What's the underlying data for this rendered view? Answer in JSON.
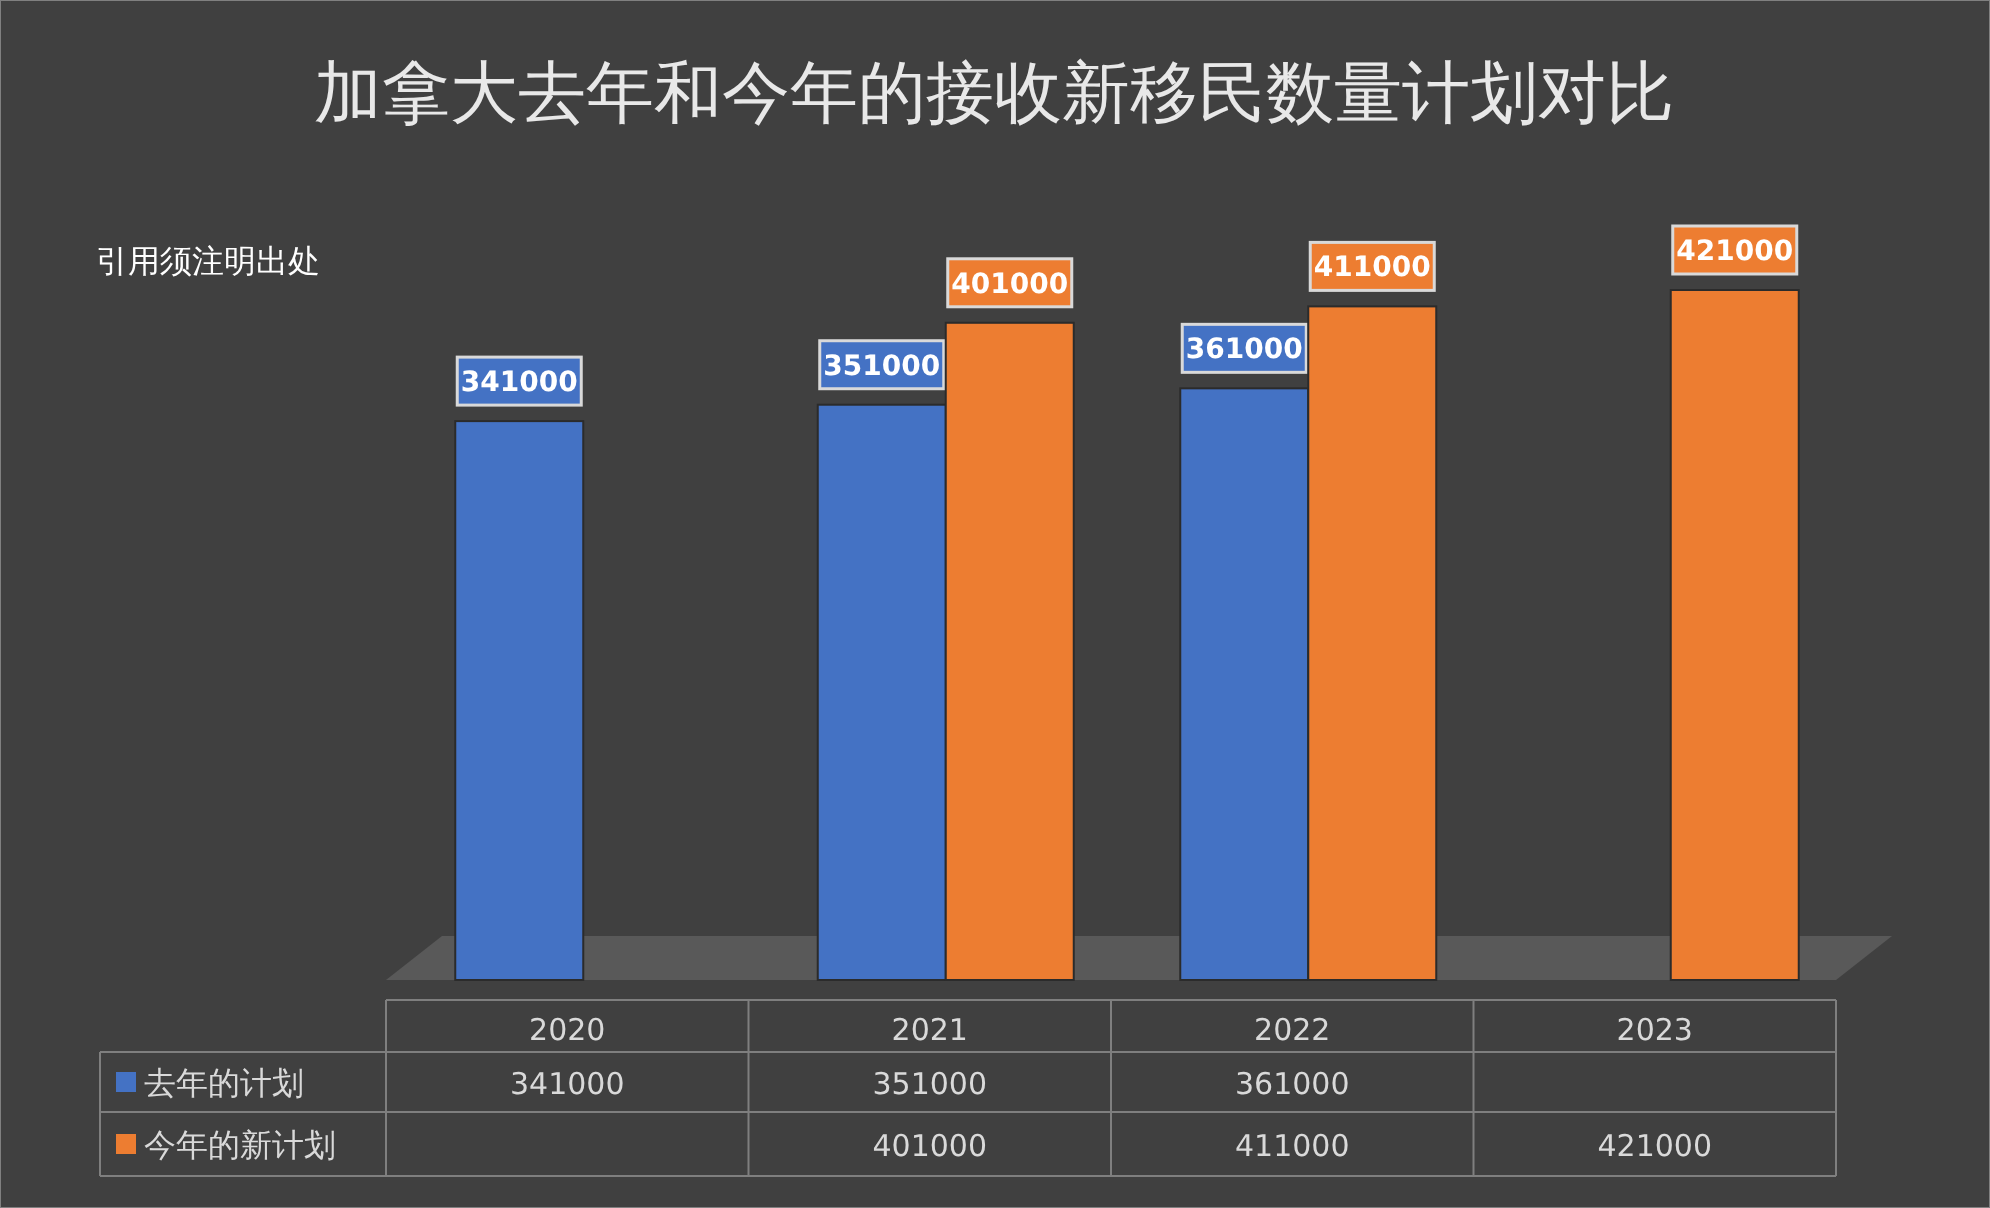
{
  "chart_data": {
    "type": "bar",
    "title": "加拿大去年和今年的接收新移民数量计划对比",
    "annotations": [
      "引用须注明出处",
      "341000",
      "351000",
      "361000",
      "401000",
      "411000",
      "421000"
    ],
    "categories": [
      "2020",
      "2021",
      "2022",
      "2023"
    ],
    "series": [
      {
        "name": "去年的计划",
        "color": "#4472c4",
        "values": [
          341000,
          351000,
          361000,
          null
        ],
        "value_labels": [
          "341000",
          "351000",
          "361000",
          null
        ]
      },
      {
        "name": "今年的新计划",
        "color": "#ed7d31",
        "values": [
          null,
          401000,
          411000,
          421000
        ],
        "value_labels": [
          null,
          "401000",
          "411000",
          "421000"
        ]
      }
    ],
    "data_labels": true,
    "legend": "bottom"
  }
}
